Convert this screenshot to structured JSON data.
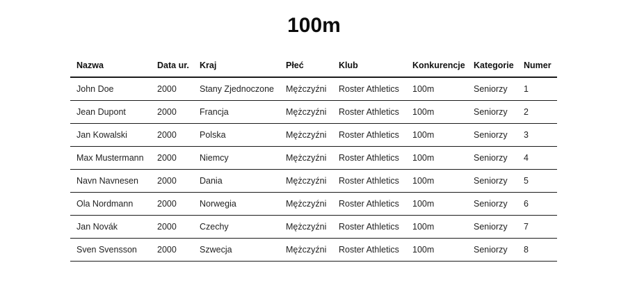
{
  "page": {
    "title": "100m"
  },
  "table": {
    "headers": [
      "Nazwa",
      "Data ur.",
      "Kraj",
      "Płeć",
      "Klub",
      "Konkurencje",
      "Kategorie",
      "Numer"
    ],
    "rows": [
      [
        "John Doe",
        "2000",
        "Stany Zjednoczone",
        "Mężczyźni",
        "Roster Athletics",
        "100m",
        "Seniorzy",
        "1"
      ],
      [
        "Jean Dupont",
        "2000",
        "Francja",
        "Mężczyźni",
        "Roster Athletics",
        "100m",
        "Seniorzy",
        "2"
      ],
      [
        "Jan Kowalski",
        "2000",
        "Polska",
        "Mężczyźni",
        "Roster Athletics",
        "100m",
        "Seniorzy",
        "3"
      ],
      [
        "Max Mustermann",
        "2000",
        "Niemcy",
        "Mężczyźni",
        "Roster Athletics",
        "100m",
        "Seniorzy",
        "4"
      ],
      [
        "Navn Navnesen",
        "2000",
        "Dania",
        "Mężczyźni",
        "Roster Athletics",
        "100m",
        "Seniorzy",
        "5"
      ],
      [
        "Ola Nordmann",
        "2000",
        "Norwegia",
        "Mężczyźni",
        "Roster Athletics",
        "100m",
        "Seniorzy",
        "6"
      ],
      [
        "Jan Novák",
        "2000",
        "Czechy",
        "Mężczyźni",
        "Roster Athletics",
        "100m",
        "Seniorzy",
        "7"
      ],
      [
        "Sven Svensson",
        "2000",
        "Szwecja",
        "Mężczyźni",
        "Roster Athletics",
        "100m",
        "Seniorzy",
        "8"
      ]
    ]
  }
}
